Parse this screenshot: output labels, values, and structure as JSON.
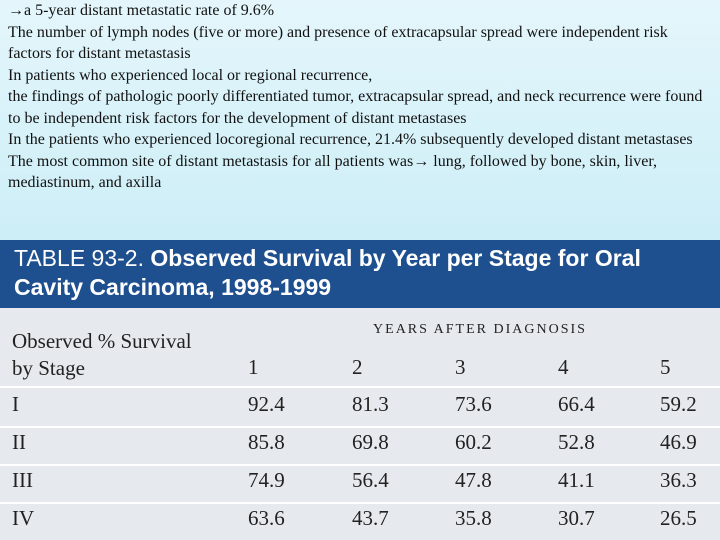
{
  "notes": [
    "→a 5-year distant metastatic rate of 9.6%",
    "The  number of lymph nodes (five or more) and presence of extracapsular spread were independent risk factors for distant metastasis",
    "In patients who experienced local or regional recurrence,",
    "the findings of pathologic poorly differentiated tumor, extracapsular  spread, and neck recurrence were found to be independent risk factors for the development of distant metastases",
    "In the patients who experienced locoregional recurrence, 21.4% subsequently developed distant metastases",
    "The most common site of distant metastasis for all patients was→ lung, followed by bone, skin, liver, mediastinum, and axilla"
  ],
  "table": {
    "label": "TABLE 93-2.",
    "title": "Observed Survival by Year per Stage for Oral Cavity Carcinoma, 1998-1999",
    "stub_header": "Observed % Survival by Stage",
    "group_header": "YEARS AFTER DIAGNOSIS",
    "years": [
      1,
      2,
      3,
      4,
      5
    ],
    "rows": [
      {
        "stage": "I",
        "values": [
          92.4,
          81.3,
          73.6,
          66.4,
          59.2
        ]
      },
      {
        "stage": "II",
        "values": [
          85.8,
          69.8,
          60.2,
          52.8,
          46.9
        ]
      },
      {
        "stage": "III",
        "values": [
          74.9,
          56.4,
          47.8,
          41.1,
          36.3
        ]
      },
      {
        "stage": "IV",
        "values": [
          63.6,
          43.7,
          35.8,
          30.7,
          26.5
        ]
      }
    ]
  }
}
